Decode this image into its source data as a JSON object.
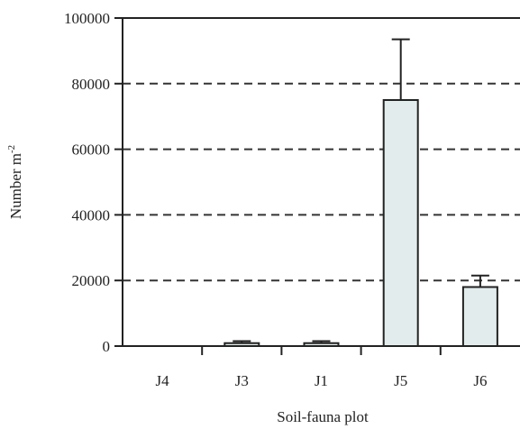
{
  "chart_data": {
    "type": "bar",
    "xlabel": "Soil-fauna plot",
    "ylabel_main": "Number m",
    "ylabel_sup": "-2",
    "categories": [
      "J4",
      "J3",
      "J1",
      "J5",
      "J6"
    ],
    "values": [
      0,
      900,
      900,
      75000,
      18000
    ],
    "errors": [
      0,
      600,
      600,
      18500,
      3500
    ],
    "ylim": [
      0,
      100000
    ],
    "yticks": [
      0,
      20000,
      40000,
      60000,
      80000,
      100000
    ],
    "ytick_labels": [
      "0",
      "20000",
      "40000",
      "60000",
      "80000",
      "100000"
    ],
    "grid": "horizontal dashed",
    "bar_color": "#e3ecec"
  }
}
